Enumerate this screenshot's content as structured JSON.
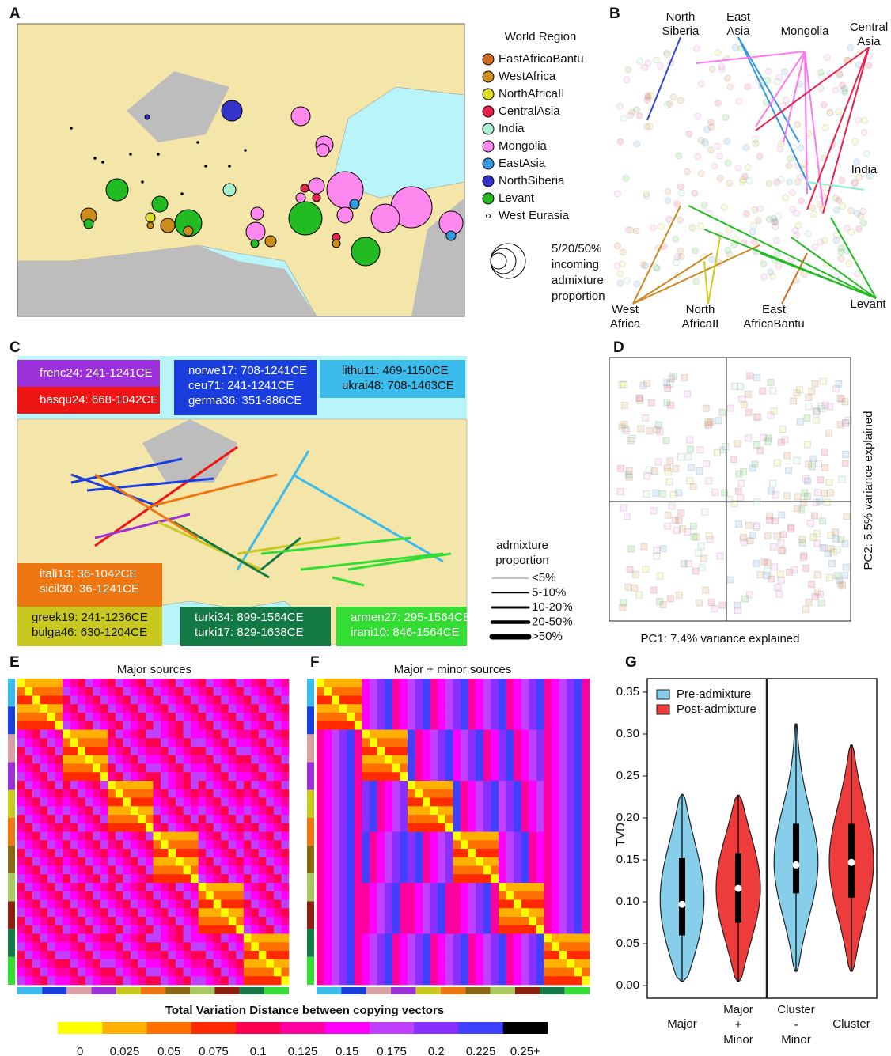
{
  "panel_labels": [
    "A",
    "B",
    "C",
    "D",
    "E",
    "F",
    "G"
  ],
  "panel_a": {
    "legend_title": "World Region",
    "regions": [
      {
        "name": "EastAfricaBantu",
        "color": "#d2691e"
      },
      {
        "name": "WestAfrica",
        "color": "#cd8c1a"
      },
      {
        "name": "NorthAfricaII",
        "color": "#dcdc22"
      },
      {
        "name": "CentralAsia",
        "color": "#e8204a"
      },
      {
        "name": "India",
        "color": "#aaf0d0"
      },
      {
        "name": "Mongolia",
        "color": "#ff88ee"
      },
      {
        "name": "EastAsia",
        "color": "#3399dd"
      },
      {
        "name": "NorthSiberia",
        "color": "#3333cc"
      },
      {
        "name": "Levant",
        "color": "#22bb22"
      },
      {
        "name": "West Eurasia",
        "color": "#ffffff"
      }
    ],
    "size_legend": [
      "5/20/50%",
      "incoming",
      "admixture",
      "proportion"
    ]
  },
  "panel_b": {
    "labels": [
      [
        "North",
        "Siberia"
      ],
      [
        "East",
        "Asia"
      ],
      [
        "Mongolia"
      ],
      [
        "Central",
        "Asia"
      ],
      [
        "India"
      ],
      [
        "West",
        "Africa"
      ],
      [
        "North",
        "AfricaII"
      ],
      [
        "East",
        "AfricaBantu"
      ],
      [
        "Levant"
      ]
    ]
  },
  "panel_c": {
    "groups": [
      {
        "color": "#9b30d9",
        "lines": [
          "frenc24: 241-1241CE"
        ]
      },
      {
        "color": "#ee1515",
        "lines": [
          "basqu24: 668-1042CE"
        ]
      },
      {
        "color": "#1a3ddd",
        "lines": [
          "norwe17: 708-1241CE",
          "ceu71: 241-1241CE",
          "germa36: 351-886CE"
        ]
      },
      {
        "color": "#3cbcec",
        "lines": [
          "lithu11: 469-1150CE",
          "ukrai48: 708-1463CE"
        ]
      },
      {
        "color": "#ee7711",
        "lines": [
          "itali13: 36-1042CE",
          "sicil30: 36-1241CE"
        ]
      },
      {
        "color": "#c8c81e",
        "lines": [
          "greek19: 241-1236CE",
          "bulga46: 630-1204CE"
        ]
      },
      {
        "color": "#137a45",
        "lines": [
          "turki34: 899-1564CE",
          "turki17: 829-1638CE"
        ]
      },
      {
        "color": "#33dd33",
        "lines": [
          "armen27: 295-1564CE",
          "irani10: 846-1564CE"
        ]
      }
    ],
    "legend_title": [
      "admixture",
      "proportion"
    ],
    "legend": [
      "<5%",
      "5-10%",
      "10-20%",
      "20-50%",
      ">50%"
    ]
  },
  "panel_d": {
    "xlabel": "PC1: 7.4% variance explained",
    "ylabel": "PC2: 5.5% variance explained"
  },
  "panel_e": {
    "title": "Major sources"
  },
  "panel_f": {
    "title": "Major + minor sources"
  },
  "colorbar": {
    "title": "Total Variation Distance between copying vectors",
    "ticks": [
      0,
      0.025,
      0.05,
      0.075,
      0.1,
      0.125,
      0.15,
      0.175,
      0.2,
      0.225,
      {
        "value": 0.25,
        "label": "0.25+"
      }
    ],
    "colors": [
      "#ffff00",
      "#ffb000",
      "#ff7000",
      "#ff2a00",
      "#ff0050",
      "#ff00a0",
      "#ff00ff",
      "#c040ff",
      "#8830ff",
      "#4040ff",
      "#000000"
    ]
  },
  "chart_data": {
    "type": "violin",
    "ylabel": "TVD",
    "categories": [
      [
        "Major"
      ],
      [
        "Major",
        "+",
        "Minor"
      ],
      [
        "Cluster",
        "-",
        "Minor"
      ],
      [
        "Cluster"
      ]
    ],
    "series": [
      {
        "name": "Pre-admixture",
        "color": "#87ceeb",
        "values": [
          {
            "min": 0.005,
            "q1": 0.06,
            "median": 0.097,
            "q3": 0.152,
            "max": 0.228
          },
          null,
          {
            "min": 0.017,
            "q1": 0.11,
            "median": 0.144,
            "q3": 0.193,
            "max": 0.312
          },
          null
        ]
      },
      {
        "name": "Post-admixture",
        "color": "#ee3b3b",
        "values": [
          null,
          {
            "min": 0.005,
            "q1": 0.075,
            "median": 0.116,
            "q3": 0.158,
            "max": 0.227
          },
          null,
          {
            "min": 0.017,
            "q1": 0.105,
            "median": 0.147,
            "q3": 0.193,
            "max": 0.287
          }
        ]
      }
    ],
    "ylim": [
      -0.015,
      0.366
    ],
    "yticks": [
      {
        "value": 0,
        "label": "0.00"
      },
      {
        "value": 0.05,
        "label": "0.05"
      },
      {
        "value": 0.1,
        "label": "0.10"
      },
      {
        "value": 0.15,
        "label": "0.15"
      },
      {
        "value": 0.2,
        "label": "0.20"
      },
      {
        "value": 0.25,
        "label": "0.25"
      },
      {
        "value": 0.3,
        "label": "0.30"
      },
      {
        "value": 0.35,
        "label": "0.35"
      }
    ]
  }
}
